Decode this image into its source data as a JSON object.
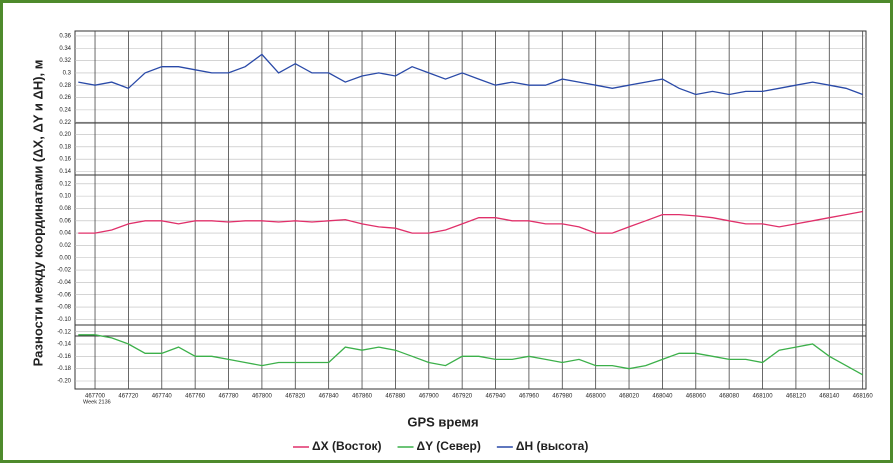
{
  "chart_data": {
    "type": "line",
    "ylabel": "Разности между координатами (ΔX, ΔY и ΔH), м",
    "xlabel": "GPS время",
    "x_note": "Week 2136",
    "x": [
      467690,
      467700,
      467710,
      467720,
      467730,
      467740,
      467750,
      467760,
      467770,
      467780,
      467790,
      467800,
      467810,
      467820,
      467830,
      467840,
      467850,
      467860,
      467870,
      467880,
      467890,
      467900,
      467910,
      467920,
      467930,
      467940,
      467950,
      467960,
      467970,
      467980,
      467990,
      468000,
      468010,
      468020,
      468030,
      468040,
      468050,
      468060,
      468070,
      468080,
      468090,
      468100,
      468110,
      468120,
      468130,
      468140,
      468150,
      468160
    ],
    "series": [
      {
        "name": "ΔX (Восток)",
        "color": "#e0306a",
        "values": [
          0.04,
          0.04,
          0.045,
          0.055,
          0.06,
          0.06,
          0.055,
          0.06,
          0.06,
          0.058,
          0.06,
          0.06,
          0.058,
          0.06,
          0.058,
          0.06,
          0.062,
          0.055,
          0.05,
          0.048,
          0.04,
          0.04,
          0.045,
          0.055,
          0.065,
          0.065,
          0.06,
          0.06,
          0.055,
          0.055,
          0.05,
          0.04,
          0.04,
          0.05,
          0.06,
          0.07,
          0.07,
          0.068,
          0.065,
          0.06,
          0.055,
          0.055,
          0.05,
          0.055,
          0.06,
          0.065,
          0.07,
          0.075
        ]
      },
      {
        "name": "ΔY (Север)",
        "color": "#3cb04a",
        "values": [
          -0.125,
          -0.125,
          -0.13,
          -0.14,
          -0.155,
          -0.155,
          -0.145,
          -0.16,
          -0.16,
          -0.165,
          -0.17,
          -0.175,
          -0.17,
          -0.17,
          -0.17,
          -0.17,
          -0.145,
          -0.15,
          -0.145,
          -0.15,
          -0.16,
          -0.17,
          -0.175,
          -0.16,
          -0.16,
          -0.165,
          -0.165,
          -0.16,
          -0.165,
          -0.17,
          -0.165,
          -0.175,
          -0.175,
          -0.18,
          -0.175,
          -0.165,
          -0.155,
          -0.155,
          -0.16,
          -0.165,
          -0.165,
          -0.17,
          -0.15,
          -0.145,
          -0.14,
          -0.16,
          -0.175,
          -0.19
        ]
      },
      {
        "name": "ΔH (высота)",
        "color": "#2a4aa8",
        "values": [
          0.285,
          0.28,
          0.285,
          0.275,
          0.3,
          0.31,
          0.31,
          0.305,
          0.3,
          0.3,
          0.31,
          0.33,
          0.3,
          0.315,
          0.3,
          0.3,
          0.285,
          0.295,
          0.3,
          0.295,
          0.31,
          0.3,
          0.29,
          0.3,
          0.29,
          0.28,
          0.285,
          0.28,
          0.28,
          0.29,
          0.285,
          0.28,
          0.275,
          0.28,
          0.285,
          0.29,
          0.275,
          0.265,
          0.27,
          0.265,
          0.27,
          0.27,
          0.275,
          0.28,
          0.285,
          0.28,
          0.275,
          0.265
        ]
      }
    ],
    "xlim": [
      467688,
      468162
    ],
    "xticks": [
      467700,
      467720,
      467740,
      467760,
      467780,
      467800,
      467820,
      467840,
      467860,
      467880,
      467900,
      467920,
      467940,
      467960,
      467980,
      468000,
      468020,
      468040,
      468060,
      468080,
      468100,
      468120,
      468140,
      468160
    ],
    "ylim": [
      -0.213,
      0.368
    ],
    "yticks": [
      0.36,
      0.34,
      0.32,
      0.3,
      0.28,
      0.26,
      0.24,
      0.22,
      {
        "value": 0.2,
        "label": "0.20"
      },
      0.18,
      0.16,
      0.14,
      0.12,
      {
        "value": 0.1,
        "label": "0.10"
      },
      0.08,
      0.06,
      0.04,
      0.02,
      {
        "value": 0,
        "label": "0.00"
      },
      -0.02,
      -0.04,
      -0.06,
      -0.08,
      {
        "value": -0.1,
        "label": "-0.10"
      },
      -0.12,
      -0.14,
      -0.16,
      -0.18,
      {
        "value": -0.2,
        "label": "-0.20"
      }
    ],
    "grid": true,
    "legend": "bottom"
  }
}
